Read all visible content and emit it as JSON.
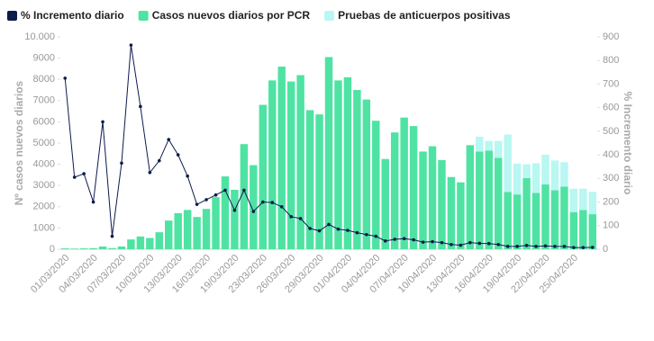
{
  "chart_data": {
    "type": "bar-line",
    "y_label": "Nº casos nuevos diarios",
    "y2_label": "% Incremento diario",
    "categories": [
      "01/03/2020",
      null,
      null,
      "04/03/2020",
      null,
      null,
      "07/03/2020",
      null,
      null,
      "10/03/2020",
      null,
      null,
      "13/03/2020",
      null,
      null,
      "16/03/2020",
      null,
      null,
      "19/03/2020",
      null,
      null,
      "23/03/2020",
      null,
      null,
      "26/03/2020",
      null,
      null,
      "29/03/2020",
      null,
      null,
      "01/04/2020",
      null,
      null,
      "04/04/2020",
      null,
      null,
      "07/04/2020",
      null,
      null,
      "10/04/2020",
      null,
      null,
      "13/04/2020",
      null,
      null,
      "16/04/2020",
      null,
      null,
      "19/04/2020",
      null,
      null,
      "22/04/2020",
      null,
      null,
      "25/04/2020",
      null,
      null
    ],
    "series": [
      {
        "name": "% Incremento diario",
        "type": "line",
        "axis": "y2",
        "color": "#0d1a4d",
        "values": [
          725,
          305,
          320,
          200,
          540,
          55,
          365,
          865,
          605,
          325,
          375,
          465,
          400,
          310,
          190,
          210,
          230,
          250,
          165,
          250,
          160,
          200,
          198,
          180,
          138,
          130,
          88,
          78,
          105,
          85,
          80,
          70,
          62,
          55,
          35,
          42,
          45,
          40,
          30,
          32,
          28,
          20,
          17,
          28,
          25,
          24,
          20,
          12,
          12,
          16,
          12,
          14,
          12,
          12,
          7,
          7,
          8
        ]
      },
      {
        "name": "Casos nuevos diarios por PCR",
        "type": "bar",
        "color": "#4fe3a3",
        "values": [
          40,
          30,
          40,
          50,
          130,
          50,
          130,
          460,
          600,
          530,
          800,
          1350,
          1700,
          1850,
          1520,
          1900,
          2450,
          3430,
          2800,
          4950,
          3960,
          6800,
          7950,
          8600,
          7900,
          8200,
          6550,
          6350,
          9050,
          7950,
          8100,
          7500,
          7050,
          6050,
          4250,
          5500,
          6200,
          5800,
          4600,
          4850,
          4200,
          3400,
          3150,
          4900,
          4600,
          4650,
          4300,
          2700,
          2580,
          3350,
          2650,
          3050,
          2780,
          2950,
          1750,
          1850,
          1650
        ]
      },
      {
        "name": "Pruebas de anticuerpos positivas",
        "type": "bar",
        "color": "#b8f7f2",
        "values": [
          0,
          0,
          0,
          0,
          0,
          0,
          0,
          0,
          0,
          0,
          0,
          0,
          0,
          0,
          0,
          0,
          0,
          0,
          0,
          0,
          0,
          0,
          0,
          0,
          0,
          0,
          0,
          0,
          0,
          0,
          0,
          0,
          0,
          0,
          0,
          0,
          0,
          0,
          0,
          0,
          0,
          0,
          0,
          0,
          700,
          450,
          800,
          2700,
          1450,
          650,
          1400,
          1400,
          1400,
          1150,
          1100,
          1000,
          1050
        ]
      }
    ],
    "ylim": [
      0,
      10000
    ],
    "yticks": [
      0,
      1000,
      2000,
      3000,
      4000,
      5000,
      6000,
      7000,
      8000,
      9000,
      {
        "value": 10000,
        "label": "10.000"
      }
    ],
    "y2lim": [
      0,
      900
    ],
    "y2ticks": [
      0,
      100,
      200,
      300,
      400,
      500,
      600,
      700,
      800,
      900
    ],
    "legend": "top-left"
  }
}
